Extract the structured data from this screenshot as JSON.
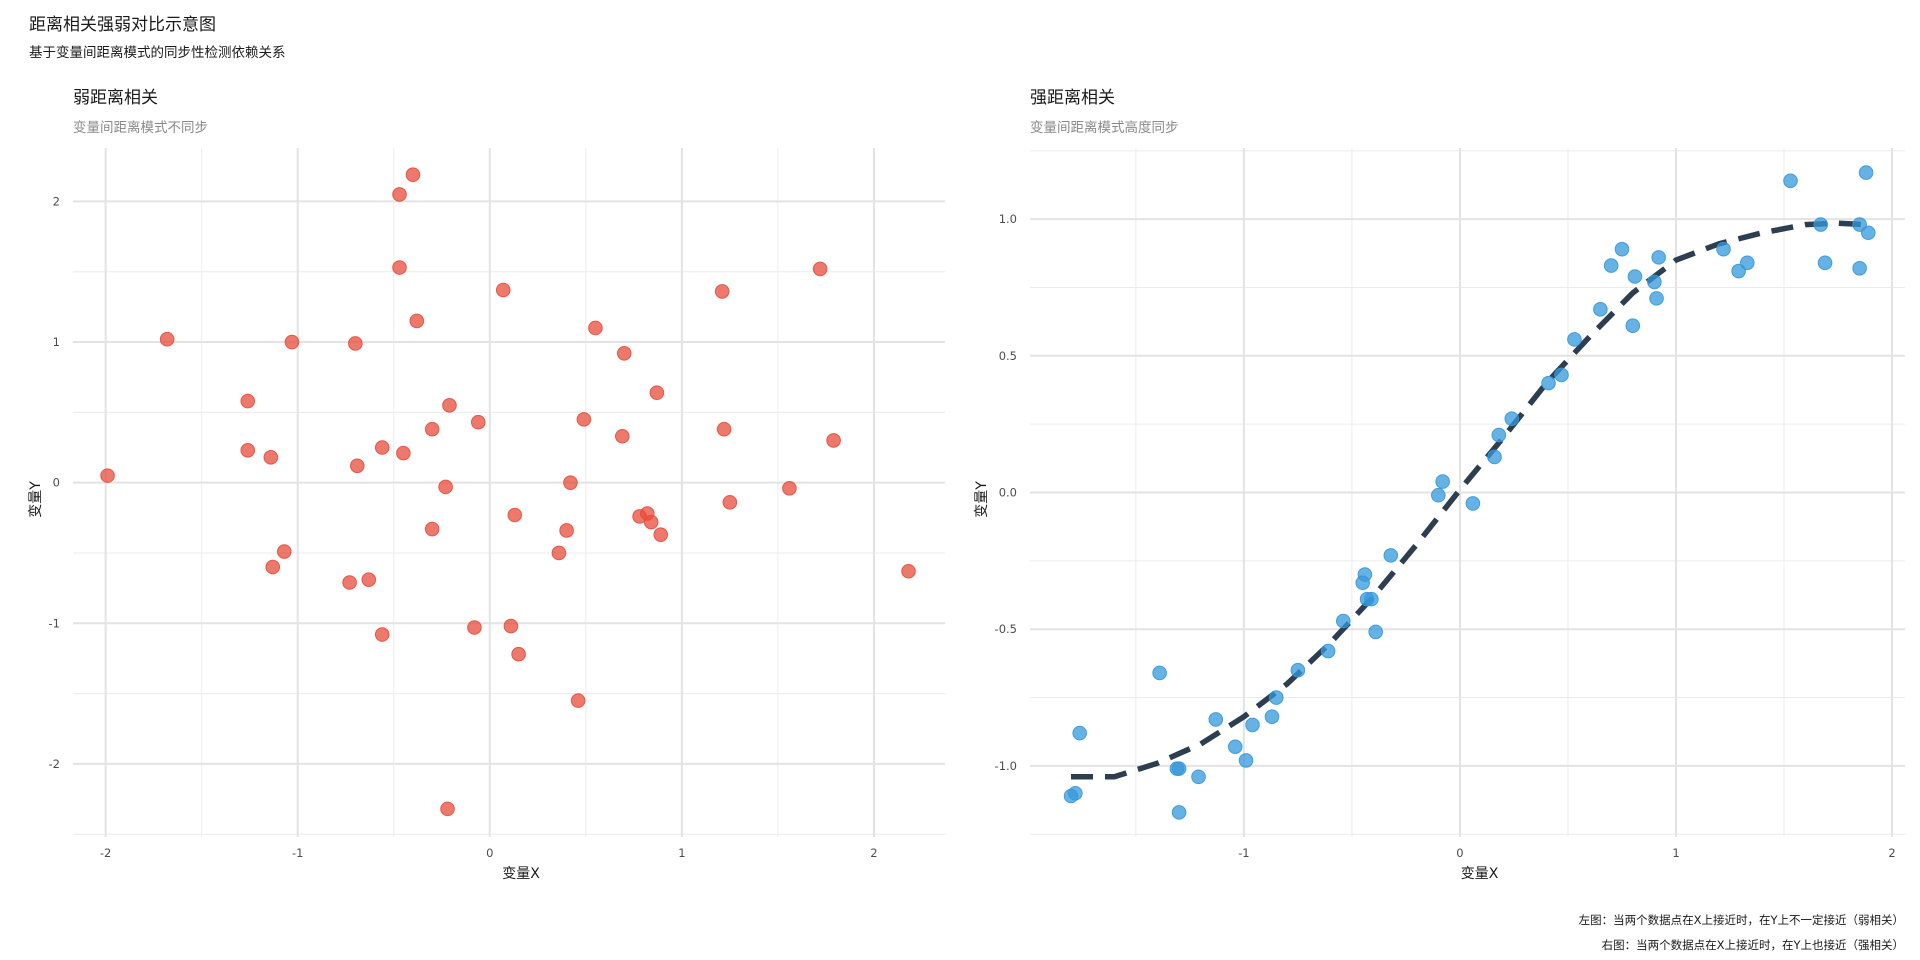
{
  "title": "距离相关强弱对比示意图",
  "subtitle": "基于变量间距离模式的同步性检测依赖关系",
  "captions": [
    "左图：当两个数据点在X上接近时，在Y上不一定接近（弱相关）",
    "右图：当两个数据点在X上接近时，在Y上也接近（强相关）"
  ],
  "colors": {
    "left_points": "#E74C3C",
    "right_points": "#3498DB",
    "fit_line": "#2C3E50"
  },
  "chart_data": [
    {
      "type": "scatter",
      "title": "弱距离相关",
      "subtitle": "变量间距离模式不同步",
      "xlabel": "变量X",
      "ylabel": "变量Y",
      "xlim": [
        -2.17,
        2.37
      ],
      "ylim": [
        -2.52,
        2.38
      ],
      "xticks": [
        -2,
        -1,
        0,
        1,
        2
      ],
      "xtick_labels": [
        "-2",
        "-1",
        "0",
        "1",
        "2"
      ],
      "yticks": [
        -2,
        -1,
        0,
        1,
        2
      ],
      "ytick_labels": [
        "-2",
        "-1",
        "0",
        "1",
        "2"
      ],
      "grid": true,
      "points": [
        {
          "x": -1.99,
          "y": 0.05
        },
        {
          "x": -1.68,
          "y": 1.02
        },
        {
          "x": -1.26,
          "y": 0.58
        },
        {
          "x": -1.26,
          "y": 0.23
        },
        {
          "x": -1.14,
          "y": 0.18
        },
        {
          "x": -1.13,
          "y": -0.6
        },
        {
          "x": -1.07,
          "y": -0.49
        },
        {
          "x": -1.03,
          "y": 1.0
        },
        {
          "x": -0.73,
          "y": -0.71
        },
        {
          "x": -0.7,
          "y": 0.99
        },
        {
          "x": -0.69,
          "y": 0.12
        },
        {
          "x": -0.63,
          "y": -0.69
        },
        {
          "x": -0.56,
          "y": 0.25
        },
        {
          "x": -0.56,
          "y": -1.08
        },
        {
          "x": -0.47,
          "y": 2.05
        },
        {
          "x": -0.47,
          "y": 1.53
        },
        {
          "x": -0.45,
          "y": 0.21
        },
        {
          "x": -0.4,
          "y": 2.19
        },
        {
          "x": -0.38,
          "y": 1.15
        },
        {
          "x": -0.3,
          "y": 0.38
        },
        {
          "x": -0.3,
          "y": -0.33
        },
        {
          "x": -0.23,
          "y": -0.03
        },
        {
          "x": -0.21,
          "y": 0.55
        },
        {
          "x": -0.22,
          "y": -2.32
        },
        {
          "x": -0.08,
          "y": -1.03
        },
        {
          "x": -0.06,
          "y": 0.43
        },
        {
          "x": 0.07,
          "y": 1.37
        },
        {
          "x": 0.11,
          "y": -1.02
        },
        {
          "x": 0.13,
          "y": -0.23
        },
        {
          "x": 0.15,
          "y": -1.22
        },
        {
          "x": 0.36,
          "y": -0.5
        },
        {
          "x": 0.4,
          "y": -0.34
        },
        {
          "x": 0.42,
          "y": 0.0
        },
        {
          "x": 0.46,
          "y": -1.55
        },
        {
          "x": 0.49,
          "y": 0.45
        },
        {
          "x": 0.55,
          "y": 1.1
        },
        {
          "x": 0.69,
          "y": 0.33
        },
        {
          "x": 0.7,
          "y": 0.92
        },
        {
          "x": 0.78,
          "y": -0.24
        },
        {
          "x": 0.82,
          "y": -0.22
        },
        {
          "x": 0.84,
          "y": -0.28
        },
        {
          "x": 0.87,
          "y": 0.64
        },
        {
          "x": 0.89,
          "y": -0.37
        },
        {
          "x": 1.21,
          "y": 1.36
        },
        {
          "x": 1.22,
          "y": 0.38
        },
        {
          "x": 1.25,
          "y": -0.14
        },
        {
          "x": 1.56,
          "y": -0.04
        },
        {
          "x": 1.72,
          "y": 1.52
        },
        {
          "x": 1.79,
          "y": 0.3
        },
        {
          "x": 2.18,
          "y": -0.63
        }
      ]
    },
    {
      "type": "scatter",
      "title": "强距离相关",
      "subtitle": "变量间距离模式高度同步",
      "xlabel": "变量X",
      "ylabel": "变量Y",
      "xlim": [
        -1.99,
        2.06
      ],
      "ylim": [
        -1.26,
        1.26
      ],
      "xticks": [
        -1,
        0,
        1,
        2
      ],
      "xtick_labels": [
        "-1",
        "0",
        "1",
        "2"
      ],
      "yticks": [
        -1,
        -0.5,
        0,
        0.5,
        1
      ],
      "ytick_labels": [
        "-1.0",
        "-0.5",
        "0.0",
        "0.5",
        "1.0"
      ],
      "grid": true,
      "fit_line": {
        "style": "dashed",
        "points": [
          {
            "x": -1.8,
            "y": -1.04
          },
          {
            "x": -1.6,
            "y": -1.04
          },
          {
            "x": -1.4,
            "y": -0.99
          },
          {
            "x": -1.2,
            "y": -0.92
          },
          {
            "x": -1.0,
            "y": -0.82
          },
          {
            "x": -0.8,
            "y": -0.7
          },
          {
            "x": -0.6,
            "y": -0.55
          },
          {
            "x": -0.4,
            "y": -0.38
          },
          {
            "x": -0.2,
            "y": -0.19
          },
          {
            "x": 0.0,
            "y": 0.01
          },
          {
            "x": 0.2,
            "y": 0.2
          },
          {
            "x": 0.4,
            "y": 0.4
          },
          {
            "x": 0.6,
            "y": 0.57
          },
          {
            "x": 0.8,
            "y": 0.73
          },
          {
            "x": 1.0,
            "y": 0.85
          },
          {
            "x": 1.2,
            "y": 0.91
          },
          {
            "x": 1.4,
            "y": 0.95
          },
          {
            "x": 1.6,
            "y": 0.98
          },
          {
            "x": 1.75,
            "y": 0.985
          },
          {
            "x": 1.88,
            "y": 0.98
          }
        ]
      },
      "points": [
        {
          "x": -1.8,
          "y": -1.11
        },
        {
          "x": -1.78,
          "y": -1.1
        },
        {
          "x": -1.76,
          "y": -0.88
        },
        {
          "x": -1.39,
          "y": -0.66
        },
        {
          "x": -1.31,
          "y": -1.01
        },
        {
          "x": -1.3,
          "y": -1.01
        },
        {
          "x": -1.3,
          "y": -1.17
        },
        {
          "x": -1.21,
          "y": -1.04
        },
        {
          "x": -1.13,
          "y": -0.83
        },
        {
          "x": -1.04,
          "y": -0.93
        },
        {
          "x": -0.99,
          "y": -0.98
        },
        {
          "x": -0.96,
          "y": -0.85
        },
        {
          "x": -0.87,
          "y": -0.82
        },
        {
          "x": -0.85,
          "y": -0.75
        },
        {
          "x": -0.75,
          "y": -0.65
        },
        {
          "x": -0.61,
          "y": -0.58
        },
        {
          "x": -0.54,
          "y": -0.47
        },
        {
          "x": -0.45,
          "y": -0.33
        },
        {
          "x": -0.44,
          "y": -0.3
        },
        {
          "x": -0.43,
          "y": -0.39
        },
        {
          "x": -0.41,
          "y": -0.39
        },
        {
          "x": -0.39,
          "y": -0.51
        },
        {
          "x": -0.32,
          "y": -0.23
        },
        {
          "x": -0.1,
          "y": -0.01
        },
        {
          "x": -0.08,
          "y": 0.04
        },
        {
          "x": 0.06,
          "y": -0.04
        },
        {
          "x": 0.16,
          "y": 0.13
        },
        {
          "x": 0.18,
          "y": 0.21
        },
        {
          "x": 0.24,
          "y": 0.27
        },
        {
          "x": 0.41,
          "y": 0.4
        },
        {
          "x": 0.47,
          "y": 0.43
        },
        {
          "x": 0.53,
          "y": 0.56
        },
        {
          "x": 0.65,
          "y": 0.67
        },
        {
          "x": 0.7,
          "y": 0.83
        },
        {
          "x": 0.75,
          "y": 0.89
        },
        {
          "x": 0.8,
          "y": 0.61
        },
        {
          "x": 0.81,
          "y": 0.79
        },
        {
          "x": 0.9,
          "y": 0.77
        },
        {
          "x": 0.91,
          "y": 0.71
        },
        {
          "x": 0.92,
          "y": 0.86
        },
        {
          "x": 1.22,
          "y": 0.89
        },
        {
          "x": 1.29,
          "y": 0.81
        },
        {
          "x": 1.33,
          "y": 0.84
        },
        {
          "x": 1.53,
          "y": 1.14
        },
        {
          "x": 1.67,
          "y": 0.98
        },
        {
          "x": 1.69,
          "y": 0.84
        },
        {
          "x": 1.85,
          "y": 0.82
        },
        {
          "x": 1.85,
          "y": 0.98
        },
        {
          "x": 1.88,
          "y": 1.17
        },
        {
          "x": 1.89,
          "y": 0.95
        }
      ]
    }
  ]
}
